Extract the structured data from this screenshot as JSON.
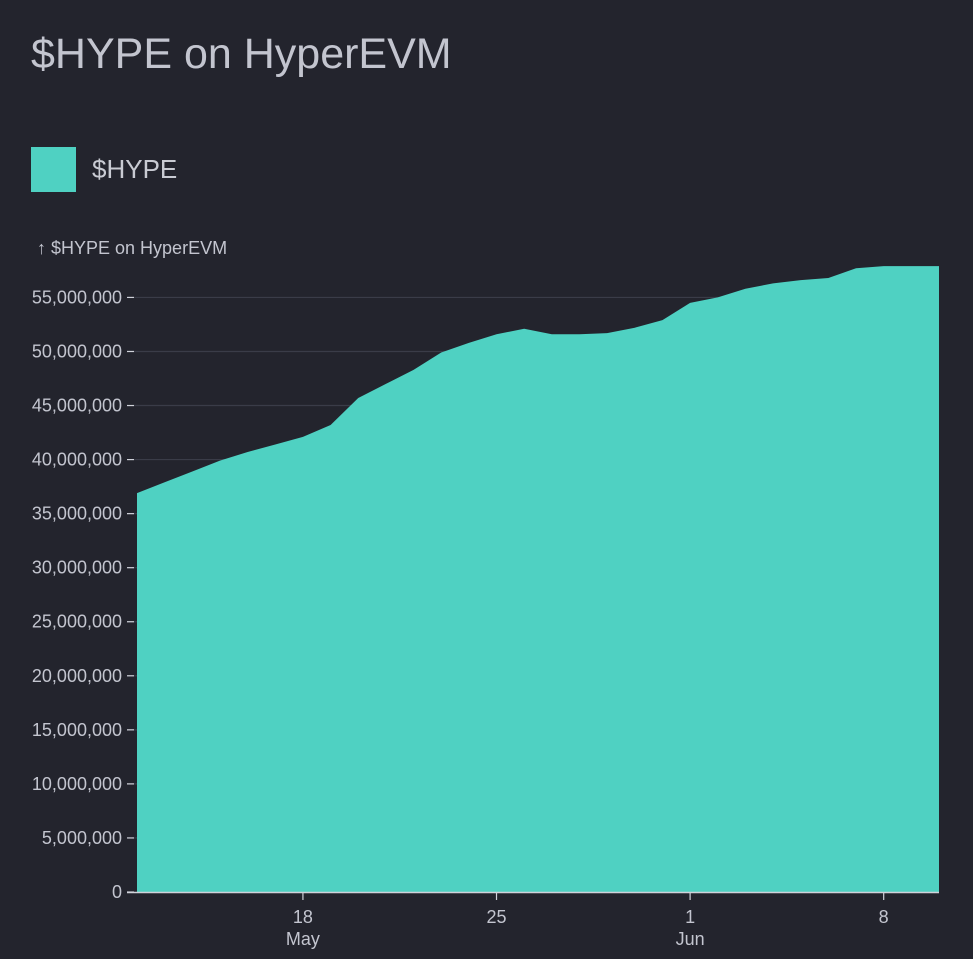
{
  "page": {
    "title": "$HYPE on HyperEVM"
  },
  "legend": {
    "items": [
      {
        "label": "$HYPE",
        "color": "#4fd1c2"
      }
    ]
  },
  "colors": {
    "background": "#23242d",
    "area": "#4fd1c2",
    "grid": "#3a3c48",
    "axis_text": "#c3c5cf"
  },
  "chart_data": {
    "type": "area",
    "title": "$HYPE on HyperEVM",
    "ylabel": "↑ $HYPE on HyperEVM",
    "xlabel": "",
    "ylim": [
      0,
      58000000
    ],
    "xlim": [
      "2025-05-12",
      "2025-06-10"
    ],
    "grid": "horizontal",
    "legend_position": "top-left",
    "yticks": [
      0,
      5000000,
      10000000,
      15000000,
      20000000,
      25000000,
      30000000,
      35000000,
      40000000,
      45000000,
      50000000,
      55000000
    ],
    "ytick_labels": [
      "0",
      "5,000,000",
      "10,000,000",
      "15,000,000",
      "20,000,000",
      "25,000,000",
      "30,000,000",
      "35,000,000",
      "40,000,000",
      "45,000,000",
      "50,000,000",
      "55,000,000"
    ],
    "xticks": [
      {
        "date": "2025-05-18",
        "label": "18",
        "sublabel": "May"
      },
      {
        "date": "2025-05-25",
        "label": "25",
        "sublabel": ""
      },
      {
        "date": "2025-06-01",
        "label": "1",
        "sublabel": "Jun"
      },
      {
        "date": "2025-06-08",
        "label": "8",
        "sublabel": ""
      }
    ],
    "series": [
      {
        "name": "$HYPE",
        "color": "#4fd1c2",
        "x": [
          "2025-05-12",
          "2025-05-13",
          "2025-05-14",
          "2025-05-15",
          "2025-05-16",
          "2025-05-17",
          "2025-05-18",
          "2025-05-19",
          "2025-05-20",
          "2025-05-21",
          "2025-05-22",
          "2025-05-23",
          "2025-05-24",
          "2025-05-25",
          "2025-05-26",
          "2025-05-27",
          "2025-05-28",
          "2025-05-29",
          "2025-05-30",
          "2025-05-31",
          "2025-06-01",
          "2025-06-02",
          "2025-06-03",
          "2025-06-04",
          "2025-06-05",
          "2025-06-06",
          "2025-06-07",
          "2025-06-08",
          "2025-06-09",
          "2025-06-10"
        ],
        "values": [
          36900000,
          37900000,
          38900000,
          39900000,
          40700000,
          41400000,
          42100000,
          43200000,
          45700000,
          47000000,
          48300000,
          49900000,
          50800000,
          51600000,
          52100000,
          51600000,
          51600000,
          51700000,
          52200000,
          52900000,
          54500000,
          55000000,
          55800000,
          56300000,
          56600000,
          56800000,
          57700000,
          57900000,
          57900000,
          57900000
        ]
      }
    ]
  }
}
